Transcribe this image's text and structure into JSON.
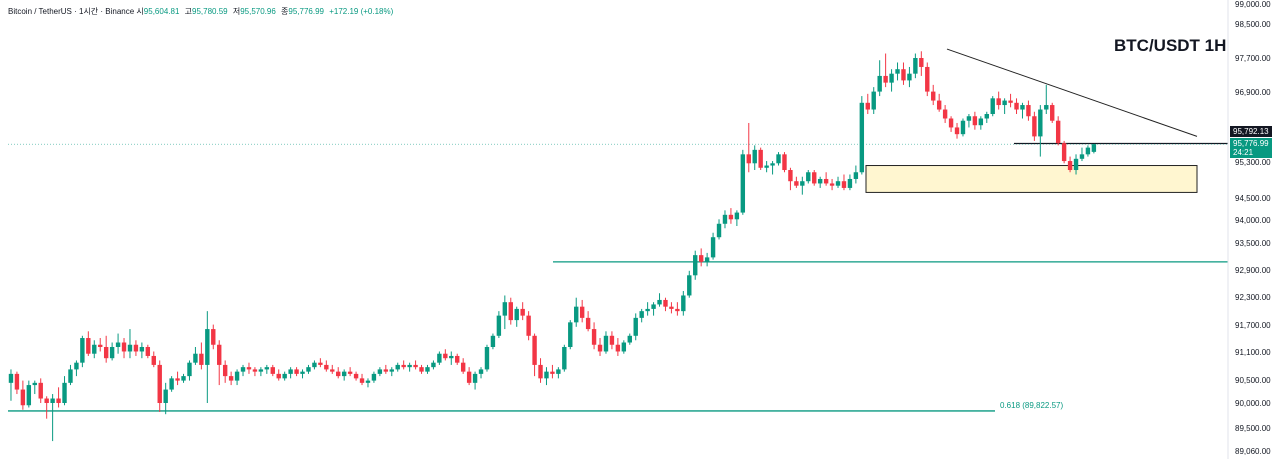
{
  "header": {
    "symbol": "Bitcoin / TetherUS · 1시간 · Binance",
    "open_label": "시",
    "open": "95,604.81",
    "high_label": "고",
    "high": "95,780.59",
    "low_label": "저",
    "low": "95,570.96",
    "close_label": "종",
    "close": "95,776.99",
    "change": "+172.19 (+0.18%)"
  },
  "title": "BTC/USDT 1H",
  "colors": {
    "up": "#089981",
    "down": "#f23645",
    "level_line": "#089981",
    "zone_fill": "#fff6d0",
    "zone_border": "#222222",
    "trendline": "#222222",
    "label_bg_dark": "#131722",
    "label_bg_green": "#089981"
  },
  "price_labels": {
    "resistance": "95,792.13",
    "current": "95,776.99",
    "countdown": "24:21"
  },
  "fib_label": "0.618 (89,822.57)",
  "chart_data": {
    "type": "candlestick",
    "title": "BTC/USDT 1H",
    "y_axis_ticks": [
      "99,000.00",
      "98,500.00",
      "97,700.00",
      "96,900.00",
      "95,300.00",
      "94,500.00",
      "94,000.00",
      "93,500.00",
      "92,900.00",
      "92,300.00",
      "91,700.00",
      "91,100.00",
      "90,500.00",
      "90,000.00",
      "89,500.00",
      "89,060.00"
    ],
    "ylim": [
      89000,
      99100
    ],
    "horizontal_levels": [
      {
        "price": 89822.57,
        "label": "0.618 (89,822.57)"
      },
      {
        "price": 93150,
        "label": ""
      },
      {
        "price": 95792.13,
        "label": "95,792.13"
      }
    ],
    "support_zone": {
      "from": 94700,
      "to": 95300
    },
    "trendline": {
      "from_bar": 158,
      "from_price": 97900,
      "to_bar": 206,
      "to_price": 95950
    },
    "candles": [
      [
        90450,
        90750,
        90050,
        90650
      ],
      [
        90650,
        90700,
        90200,
        90300
      ],
      [
        90300,
        90500,
        89850,
        89950
      ],
      [
        89950,
        90500,
        89900,
        90400
      ],
      [
        90400,
        90500,
        90200,
        90450
      ],
      [
        90450,
        90550,
        90000,
        90100
      ],
      [
        90100,
        90150,
        89650,
        90000
      ],
      [
        90000,
        90200,
        89150,
        90100
      ],
      [
        90100,
        90350,
        89900,
        90000
      ],
      [
        90000,
        90600,
        89950,
        90450
      ],
      [
        90450,
        90850,
        90400,
        90750
      ],
      [
        90750,
        90950,
        90600,
        90900
      ],
      [
        90900,
        91500,
        90800,
        91450
      ],
      [
        91450,
        91600,
        91050,
        91100
      ],
      [
        91100,
        91400,
        91000,
        91300
      ],
      [
        91300,
        91450,
        91150,
        91250
      ],
      [
        91250,
        91500,
        90900,
        91000
      ],
      [
        91000,
        91350,
        90950,
        91250
      ],
      [
        91250,
        91550,
        91100,
        91350
      ],
      [
        91350,
        91450,
        91000,
        91150
      ],
      [
        91150,
        91650,
        91000,
        91300
      ],
      [
        91300,
        91400,
        91050,
        91150
      ],
      [
        91150,
        91350,
        91000,
        91250
      ],
      [
        91250,
        91300,
        91000,
        91050
      ],
      [
        91050,
        91150,
        90800,
        90850
      ],
      [
        90850,
        90950,
        89800,
        90000
      ],
      [
        90000,
        90450,
        89750,
        90300
      ],
      [
        90300,
        90600,
        90250,
        90550
      ],
      [
        90550,
        90700,
        90400,
        90500
      ],
      [
        90500,
        90650,
        90450,
        90600
      ],
      [
        90600,
        90950,
        90500,
        90900
      ],
      [
        90900,
        91250,
        90850,
        91100
      ],
      [
        91100,
        91350,
        90750,
        90850
      ],
      [
        90850,
        92050,
        90000,
        91650
      ],
      [
        91650,
        91750,
        91200,
        91300
      ],
      [
        91300,
        91400,
        90400,
        90850
      ],
      [
        90850,
        90950,
        90450,
        90600
      ],
      [
        90600,
        90700,
        90400,
        90500
      ],
      [
        90500,
        90750,
        90400,
        90700
      ],
      [
        90700,
        90850,
        90600,
        90800
      ],
      [
        90800,
        90900,
        90650,
        90750
      ],
      [
        90750,
        90800,
        90600,
        90700
      ],
      [
        90700,
        90800,
        90600,
        90750
      ],
      [
        90750,
        90850,
        90650,
        90800
      ],
      [
        90800,
        90850,
        90600,
        90650
      ],
      [
        90650,
        90750,
        90500,
        90550
      ],
      [
        90550,
        90700,
        90500,
        90650
      ],
      [
        90650,
        90800,
        90550,
        90750
      ],
      [
        90750,
        90800,
        90600,
        90650
      ],
      [
        90650,
        90750,
        90550,
        90700
      ],
      [
        90700,
        90850,
        90650,
        90800
      ],
      [
        90800,
        90950,
        90750,
        90900
      ],
      [
        90900,
        91000,
        90800,
        90850
      ],
      [
        90850,
        90950,
        90700,
        90750
      ],
      [
        90750,
        90850,
        90650,
        90700
      ],
      [
        90700,
        90800,
        90550,
        90600
      ],
      [
        90600,
        90750,
        90500,
        90700
      ],
      [
        90700,
        90800,
        90600,
        90650
      ],
      [
        90650,
        90700,
        90500,
        90550
      ],
      [
        90550,
        90650,
        90400,
        90450
      ],
      [
        90450,
        90550,
        90350,
        90500
      ],
      [
        90500,
        90700,
        90450,
        90650
      ],
      [
        90650,
        90800,
        90600,
        90750
      ],
      [
        90750,
        90850,
        90650,
        90700
      ],
      [
        90700,
        90800,
        90600,
        90750
      ],
      [
        90750,
        90900,
        90700,
        90850
      ],
      [
        90850,
        90950,
        90750,
        90800
      ],
      [
        90800,
        90900,
        90700,
        90850
      ],
      [
        90850,
        90950,
        90750,
        90800
      ],
      [
        90800,
        90850,
        90650,
        90700
      ],
      [
        90700,
        90850,
        90650,
        90800
      ],
      [
        90800,
        90950,
        90750,
        90900
      ],
      [
        90900,
        91150,
        90850,
        91100
      ],
      [
        91100,
        91200,
        90950,
        91000
      ],
      [
        91000,
        91150,
        90850,
        91050
      ],
      [
        91050,
        91100,
        90850,
        90900
      ],
      [
        90900,
        91000,
        90650,
        90700
      ],
      [
        90700,
        90800,
        90400,
        90450
      ],
      [
        90450,
        90700,
        90300,
        90650
      ],
      [
        90650,
        90800,
        90550,
        90750
      ],
      [
        90750,
        91300,
        90700,
        91250
      ],
      [
        91250,
        91550,
        91200,
        91500
      ],
      [
        91500,
        92050,
        91450,
        91950
      ],
      [
        91950,
        92400,
        91650,
        92250
      ],
      [
        92250,
        92350,
        91750,
        91850
      ],
      [
        91850,
        92150,
        91700,
        92100
      ],
      [
        92100,
        92250,
        91850,
        91950
      ],
      [
        91950,
        92050,
        91400,
        91500
      ],
      [
        91500,
        91550,
        90600,
        90850
      ],
      [
        90850,
        91000,
        90450,
        90550
      ],
      [
        90550,
        90800,
        90400,
        90700
      ],
      [
        90700,
        90850,
        90550,
        90650
      ],
      [
        90650,
        90800,
        90550,
        90750
      ],
      [
        90750,
        91300,
        90700,
        91250
      ],
      [
        91250,
        91850,
        91200,
        91800
      ],
      [
        91800,
        92350,
        91700,
        92150
      ],
      [
        92150,
        92300,
        91800,
        91900
      ],
      [
        91900,
        92050,
        91600,
        91650
      ],
      [
        91650,
        91800,
        91200,
        91300
      ],
      [
        91300,
        91450,
        91050,
        91150
      ],
      [
        91150,
        91600,
        91100,
        91500
      ],
      [
        91500,
        91600,
        91200,
        91300
      ],
      [
        91300,
        91450,
        91050,
        91150
      ],
      [
        91150,
        91400,
        91100,
        91350
      ],
      [
        91350,
        91550,
        91300,
        91500
      ],
      [
        91500,
        92000,
        91400,
        91900
      ],
      [
        91900,
        92100,
        91800,
        92050
      ],
      [
        92050,
        92250,
        91950,
        92100
      ],
      [
        92100,
        92250,
        91950,
        92200
      ],
      [
        92200,
        92450,
        92150,
        92300
      ],
      [
        92300,
        92350,
        92050,
        92150
      ],
      [
        92150,
        92250,
        92000,
        92100
      ],
      [
        92100,
        92250,
        91950,
        92050
      ],
      [
        92050,
        92500,
        91950,
        92400
      ],
      [
        92400,
        92950,
        92350,
        92850
      ],
      [
        92850,
        93400,
        92750,
        93300
      ],
      [
        93300,
        93450,
        93050,
        93150
      ],
      [
        93150,
        93350,
        93050,
        93250
      ],
      [
        93250,
        93800,
        93200,
        93700
      ],
      [
        93700,
        94100,
        93650,
        94000
      ],
      [
        94000,
        94300,
        93900,
        94200
      ],
      [
        94200,
        94350,
        94000,
        94100
      ],
      [
        94100,
        94300,
        93950,
        94250
      ],
      [
        94250,
        95650,
        94200,
        95550
      ],
      [
        95550,
        96250,
        95150,
        95350
      ],
      [
        95350,
        95750,
        95200,
        95650
      ],
      [
        95650,
        95700,
        95200,
        95250
      ],
      [
        95250,
        95400,
        95150,
        95300
      ],
      [
        95300,
        95400,
        95100,
        95350
      ],
      [
        95350,
        95600,
        95300,
        95550
      ],
      [
        95550,
        95600,
        95150,
        95200
      ],
      [
        95200,
        95250,
        94750,
        94950
      ],
      [
        94950,
        95050,
        94800,
        94850
      ],
      [
        94850,
        95050,
        94650,
        94950
      ],
      [
        94950,
        95200,
        94900,
        95150
      ],
      [
        95150,
        95200,
        94850,
        94900
      ],
      [
        94900,
        95050,
        94800,
        95000
      ],
      [
        95000,
        95150,
        94850,
        94900
      ],
      [
        94900,
        95000,
        94750,
        94850
      ],
      [
        94850,
        95050,
        94800,
        94950
      ],
      [
        94950,
        95100,
        94750,
        94800
      ],
      [
        94800,
        95100,
        94750,
        95000
      ],
      [
        95000,
        95300,
        94900,
        95150
      ],
      [
        95150,
        96850,
        95100,
        96700
      ],
      [
        96700,
        96900,
        96450,
        96550
      ],
      [
        96550,
        97050,
        96450,
        96950
      ],
      [
        96950,
        97650,
        96850,
        97300
      ],
      [
        97300,
        97800,
        97050,
        97150
      ],
      [
        97150,
        97450,
        96950,
        97350
      ],
      [
        97350,
        97600,
        97200,
        97450
      ],
      [
        97450,
        97600,
        97100,
        97200
      ],
      [
        97200,
        97500,
        97050,
        97350
      ],
      [
        97350,
        97800,
        97250,
        97700
      ],
      [
        97700,
        97850,
        97300,
        97500
      ],
      [
        97500,
        97600,
        96850,
        96950
      ],
      [
        96950,
        97100,
        96650,
        96750
      ],
      [
        96750,
        96900,
        96500,
        96550
      ],
      [
        96550,
        96650,
        96250,
        96350
      ],
      [
        96350,
        96400,
        96050,
        96150
      ],
      [
        96150,
        96250,
        95900,
        96000
      ],
      [
        96000,
        96350,
        95950,
        96300
      ],
      [
        96300,
        96450,
        96150,
        96400
      ],
      [
        96400,
        96500,
        96100,
        96200
      ],
      [
        96200,
        96400,
        96100,
        96350
      ],
      [
        96350,
        96500,
        96250,
        96450
      ],
      [
        96450,
        96850,
        96400,
        96800
      ],
      [
        96800,
        96950,
        96550,
        96650
      ],
      [
        96650,
        96800,
        96450,
        96750
      ],
      [
        96750,
        96900,
        96600,
        96700
      ],
      [
        96700,
        96800,
        96450,
        96550
      ],
      [
        96550,
        96700,
        96350,
        96650
      ],
      [
        96650,
        96750,
        96300,
        96400
      ],
      [
        96400,
        96500,
        95850,
        95950
      ],
      [
        95950,
        96650,
        95500,
        96550
      ],
      [
        96550,
        97100,
        96450,
        96650
      ],
      [
        96650,
        96700,
        96250,
        96300
      ],
      [
        96300,
        96400,
        95750,
        95800
      ],
      [
        95800,
        95850,
        95350,
        95400
      ],
      [
        95400,
        95500,
        95150,
        95200
      ],
      [
        95200,
        95550,
        95100,
        95450
      ],
      [
        95450,
        95700,
        95400,
        95550
      ],
      [
        95550,
        95750,
        95500,
        95700
      ],
      [
        95604.81,
        95780.59,
        95570.96,
        95776.99
      ]
    ]
  }
}
